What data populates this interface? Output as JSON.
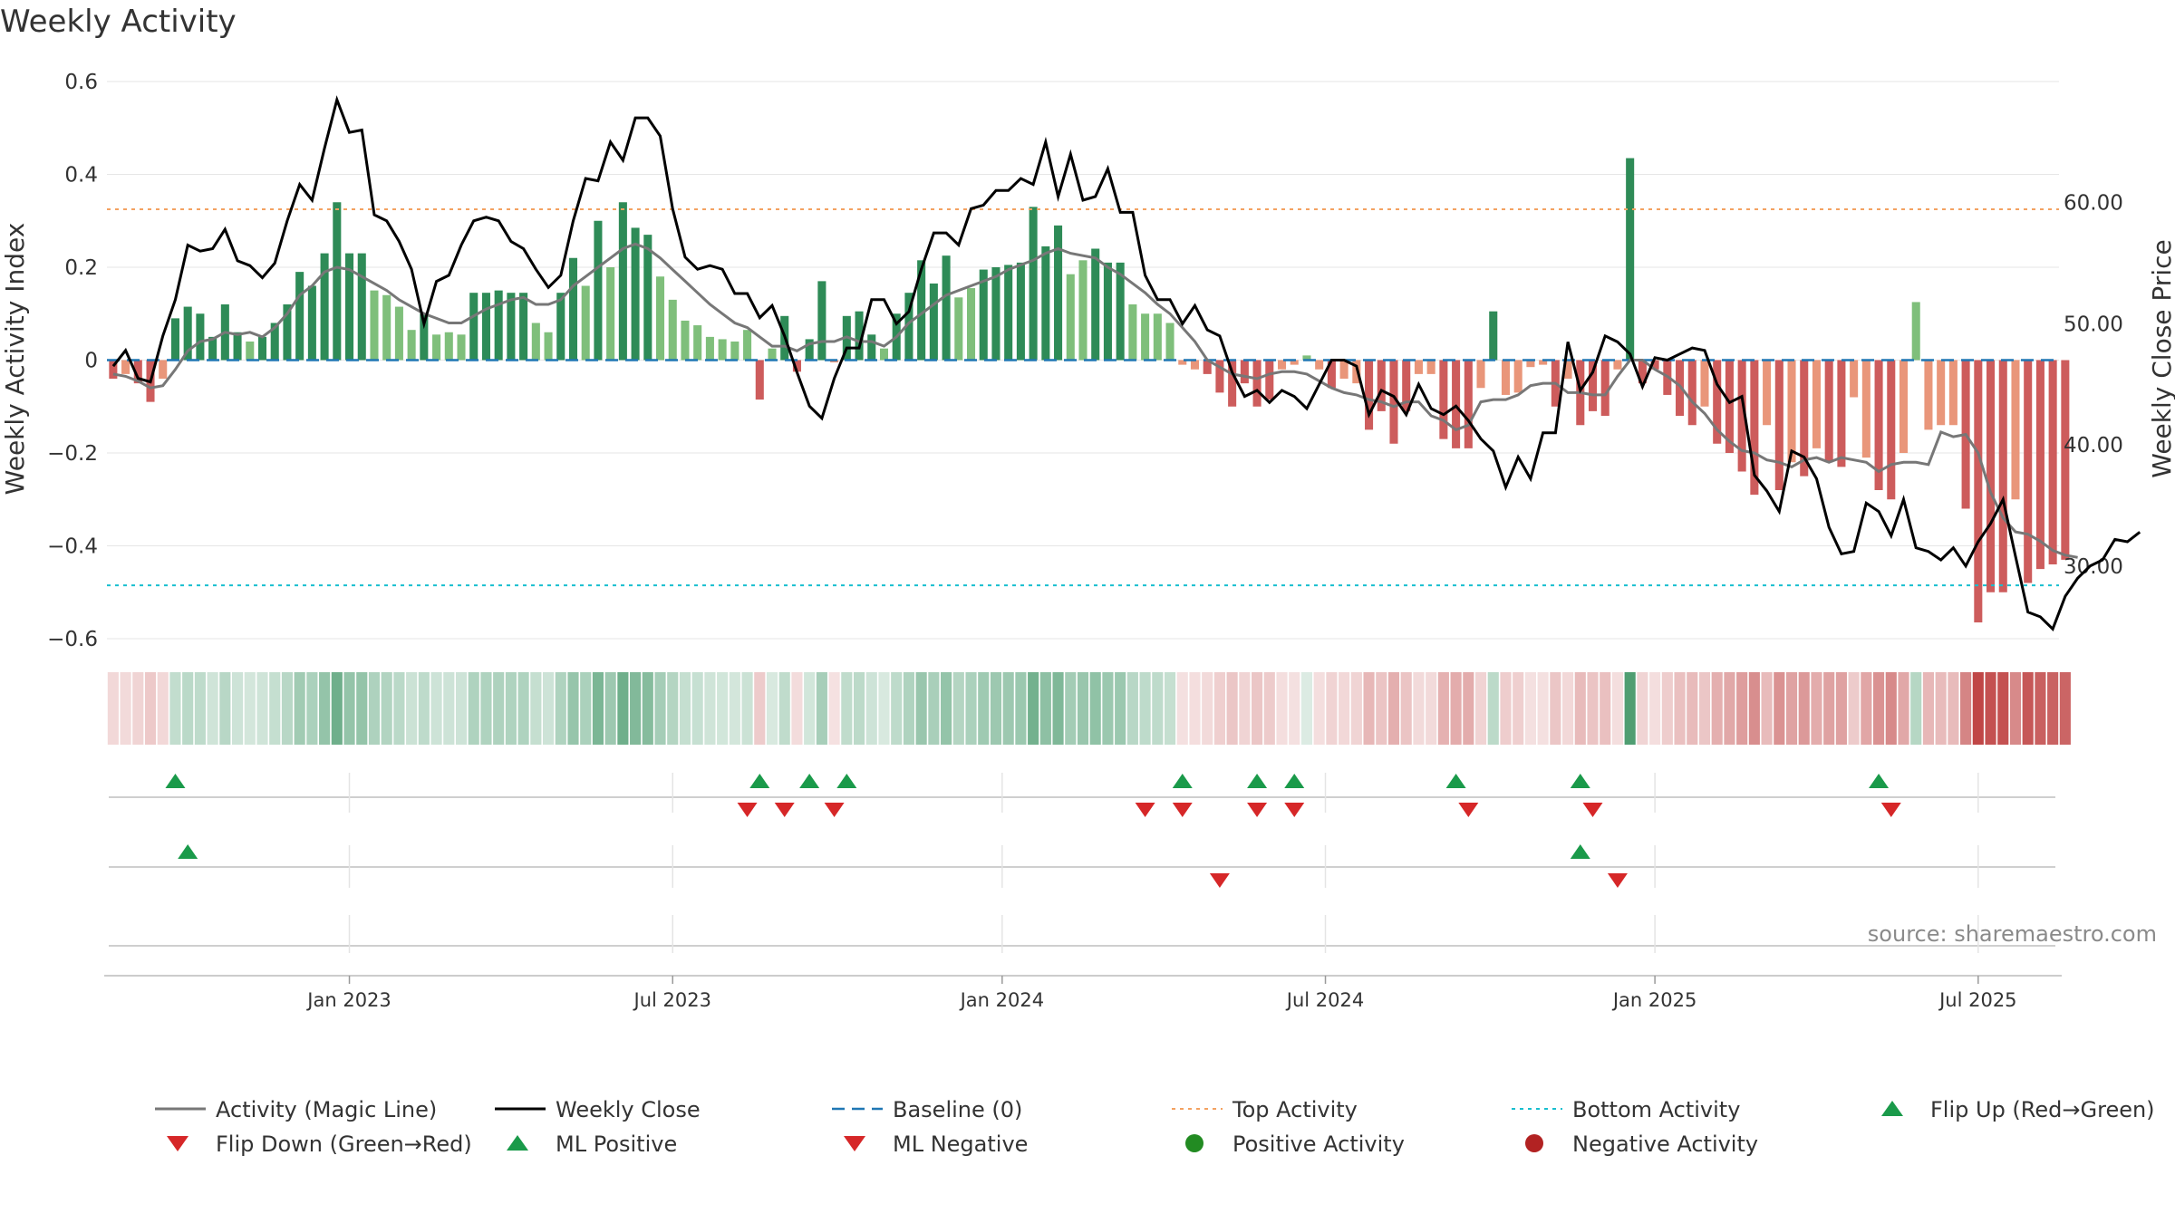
{
  "chart_data": {
    "type": "bar",
    "title": "Weekly Activity",
    "ylabel_left": "Weekly Activity Index",
    "ylabel_right": "Weekly Close Price",
    "ylim_left": [
      -0.6,
      0.6
    ],
    "ylim_right": [
      24,
      70
    ],
    "yticks_left": [
      {
        "value": 0.6,
        "label": "0.6"
      },
      {
        "value": 0.4,
        "label": "0.4"
      },
      {
        "value": 0.2,
        "label": "0.2"
      },
      {
        "value": 0.0,
        "label": "0"
      },
      {
        "value": -0.2,
        "label": "−0.2"
      },
      {
        "value": -0.4,
        "label": "−0.4"
      },
      {
        "value": -0.6,
        "label": "−0.6"
      }
    ],
    "yticks_right": [
      {
        "value": 60,
        "label": "60.00"
      },
      {
        "value": 50,
        "label": "50.00"
      },
      {
        "value": 40,
        "label": "40.00"
      },
      {
        "value": 30,
        "label": "30.00"
      }
    ],
    "xticks": [
      {
        "week": 19,
        "label": "Jan 2023"
      },
      {
        "week": 45,
        "label": "Jul 2023"
      },
      {
        "week": 71.5,
        "label": "Jan 2024"
      },
      {
        "week": 97.5,
        "label": "Jul 2024"
      },
      {
        "week": 124,
        "label": "Jan 2025"
      },
      {
        "week": 150,
        "label": "Jul 2025"
      }
    ],
    "num_weeks": 157,
    "top_activity": 0.325,
    "bottom_activity": -0.485,
    "activity": [
      -0.04,
      -0.03,
      -0.05,
      -0.09,
      -0.04,
      0.09,
      0.115,
      0.1,
      0.05,
      0.12,
      0.06,
      0.04,
      0.05,
      0.08,
      0.12,
      0.19,
      0.16,
      0.23,
      0.34,
      0.23,
      0.23,
      0.15,
      0.14,
      0.115,
      0.065,
      0.1,
      0.055,
      0.06,
      0.055,
      0.145,
      0.145,
      0.15,
      0.145,
      0.145,
      0.08,
      0.06,
      0.145,
      0.22,
      0.16,
      0.3,
      0.2,
      0.34,
      0.285,
      0.27,
      0.18,
      0.13,
      0.085,
      0.075,
      0.05,
      0.045,
      0.04,
      0.065,
      -0.085,
      0.025,
      0.095,
      -0.025,
      0.045,
      0.17,
      -0.005,
      0.095,
      0.105,
      0.055,
      0.025,
      0.1,
      0.145,
      0.215,
      0.165,
      0.225,
      0.135,
      0.155,
      0.195,
      0.2,
      0.205,
      0.21,
      0.33,
      0.245,
      0.29,
      0.185,
      0.215,
      0.24,
      0.21,
      0.21,
      0.12,
      0.1,
      0.1,
      0.08,
      -0.01,
      -0.02,
      -0.03,
      -0.07,
      -0.1,
      -0.05,
      -0.1,
      -0.085,
      -0.02,
      -0.01,
      0.01,
      -0.02,
      -0.06,
      -0.04,
      -0.05,
      -0.15,
      -0.11,
      -0.18,
      -0.11,
      -0.03,
      -0.03,
      -0.17,
      -0.19,
      -0.19,
      -0.06,
      0.105,
      -0.075,
      -0.07,
      -0.015,
      -0.01,
      -0.1,
      -0.04,
      -0.14,
      -0.11,
      -0.12,
      -0.02,
      0.435,
      -0.05,
      -0.02,
      -0.075,
      -0.12,
      -0.14,
      -0.1,
      -0.18,
      -0.2,
      -0.24,
      -0.29,
      -0.14,
      -0.28,
      -0.22,
      -0.25,
      -0.19,
      -0.22,
      -0.23,
      -0.08,
      -0.21,
      -0.28,
      -0.3,
      -0.2,
      0.125,
      -0.15,
      -0.14,
      -0.14,
      -0.32,
      -0.565,
      -0.5,
      -0.5,
      -0.3,
      -0.48,
      -0.45,
      -0.44,
      -0.43
    ],
    "activity_magic_line": [
      -0.03,
      -0.035,
      -0.045,
      -0.06,
      -0.055,
      -0.02,
      0.02,
      0.04,
      0.045,
      0.06,
      0.055,
      0.06,
      0.05,
      0.07,
      0.1,
      0.14,
      0.16,
      0.19,
      0.2,
      0.195,
      0.18,
      0.165,
      0.15,
      0.13,
      0.115,
      0.1,
      0.09,
      0.08,
      0.08,
      0.095,
      0.11,
      0.12,
      0.13,
      0.135,
      0.12,
      0.12,
      0.13,
      0.16,
      0.18,
      0.2,
      0.22,
      0.24,
      0.25,
      0.24,
      0.22,
      0.195,
      0.17,
      0.145,
      0.12,
      0.1,
      0.08,
      0.07,
      0.05,
      0.03,
      0.03,
      0.02,
      0.035,
      0.04,
      0.04,
      0.05,
      0.04,
      0.04,
      0.03,
      0.05,
      0.08,
      0.1,
      0.12,
      0.14,
      0.15,
      0.16,
      0.17,
      0.18,
      0.195,
      0.205,
      0.215,
      0.23,
      0.24,
      0.23,
      0.225,
      0.22,
      0.2,
      0.185,
      0.165,
      0.145,
      0.12,
      0.1,
      0.07,
      0.04,
      0.0,
      -0.015,
      -0.03,
      -0.035,
      -0.04,
      -0.03,
      -0.025,
      -0.025,
      -0.03,
      -0.045,
      -0.06,
      -0.07,
      -0.075,
      -0.085,
      -0.09,
      -0.1,
      -0.09,
      -0.09,
      -0.12,
      -0.13,
      -0.15,
      -0.14,
      -0.09,
      -0.085,
      -0.085,
      -0.075,
      -0.055,
      -0.05,
      -0.05,
      -0.07,
      -0.07,
      -0.075,
      -0.075,
      -0.035,
      0.0,
      0.0,
      -0.02,
      -0.035,
      -0.055,
      -0.09,
      -0.115,
      -0.15,
      -0.175,
      -0.195,
      -0.2,
      -0.215,
      -0.22,
      -0.23,
      -0.215,
      -0.21,
      -0.22,
      -0.21,
      -0.215,
      -0.22,
      -0.24,
      -0.225,
      -0.22,
      -0.22,
      -0.225,
      -0.155,
      -0.165,
      -0.16,
      -0.2,
      -0.285,
      -0.34,
      -0.37,
      -0.375,
      -0.39,
      -0.41,
      -0.42,
      -0.425
    ],
    "weekly_close": [
      46.5,
      47.8,
      45.5,
      45.2,
      49,
      52,
      56.5,
      56,
      56.2,
      57.8,
      55.2,
      54.8,
      53.8,
      55,
      58.5,
      61.5,
      60.2,
      64.5,
      68.5,
      65.8,
      66,
      59,
      58.5,
      56.8,
      54.5,
      50,
      53.5,
      54,
      56.5,
      58.5,
      58.8,
      58.5,
      56.8,
      56.2,
      54.5,
      53,
      54,
      58.5,
      62,
      61.8,
      65,
      63.5,
      67,
      67,
      65.5,
      59.5,
      55.5,
      54.5,
      54.8,
      54.5,
      52.5,
      52.5,
      50.5,
      51.5,
      49,
      46,
      43.2,
      42.2,
      45.5,
      48,
      48,
      52,
      52,
      50,
      51,
      54.5,
      57.5,
      57.5,
      56.5,
      59.5,
      59.8,
      61,
      61,
      62,
      61.5,
      65,
      60.5,
      64,
      60.2,
      60.5,
      62.8,
      59.2,
      59.2,
      54,
      52,
      52,
      50,
      51.5,
      49.5,
      49,
      46,
      44,
      44.5,
      43.5,
      44.5,
      44,
      43,
      45,
      47,
      47,
      46.5,
      42.5,
      44.5,
      44,
      42.5,
      45,
      43,
      42.5,
      43.2,
      42,
      40.5,
      39.5,
      36.5,
      39,
      37.2,
      41,
      41,
      48.5,
      44.5,
      46,
      49,
      48.5,
      47.5,
      44.8,
      47.2,
      47,
      47.5,
      48,
      47.8,
      45,
      43.5,
      44,
      37.5,
      36.2,
      34.5,
      39.5,
      39,
      37.2,
      33.2,
      31,
      31.2,
      35.2,
      34.5,
      32.5,
      35.5,
      31.5,
      31.2,
      30.5,
      31.5,
      30,
      32,
      33.5,
      35.5,
      30.8,
      26.2,
      25.8,
      24.8,
      27.5,
      29,
      30,
      30.5,
      32.2,
      32,
      32.8
    ],
    "strip_colors_note": "strip intensity follows activity",
    "flip_up_row1": [
      5,
      52,
      56,
      59,
      86,
      92,
      95,
      108,
      118,
      142
    ],
    "flip_down_row1": [
      51,
      54,
      58,
      83,
      86,
      92,
      95,
      109,
      119,
      143
    ],
    "ml_positive_row2": [
      6,
      118
    ],
    "ml_negative_row2": [
      89,
      121
    ],
    "legend": [
      {
        "key": "magic",
        "label": "Activity (Magic Line)"
      },
      {
        "key": "close",
        "label": "Weekly Close"
      },
      {
        "key": "baseline",
        "label": "Baseline (0)"
      },
      {
        "key": "top",
        "label": "Top Activity"
      },
      {
        "key": "bottom",
        "label": "Bottom Activity"
      },
      {
        "key": "flipup",
        "label": "Flip Up (Red→Green)"
      },
      {
        "key": "flipdown",
        "label": "Flip Down (Green→Red)"
      },
      {
        "key": "mlpos",
        "label": "ML Positive"
      },
      {
        "key": "mlneg",
        "label": "ML Negative"
      },
      {
        "key": "pos",
        "label": "Positive Activity"
      },
      {
        "key": "neg",
        "label": "Negative Activity"
      }
    ],
    "source": "source: sharemaestro.com"
  },
  "colors": {
    "positive_strong": "#2e8b57",
    "positive_light": "#7fbf7b",
    "negative_strong": "#cd5c5c",
    "negative_light": "#e9967a",
    "magic_line": "#777777",
    "close_line": "#000000",
    "baseline": "#1f77b4",
    "top_activity": "#f4a261",
    "bottom_activity": "#17becf",
    "flip_up": "#1a9a4a",
    "flip_down": "#d62728",
    "positive_dot": "#228b22",
    "negative_dot": "#b22222"
  }
}
